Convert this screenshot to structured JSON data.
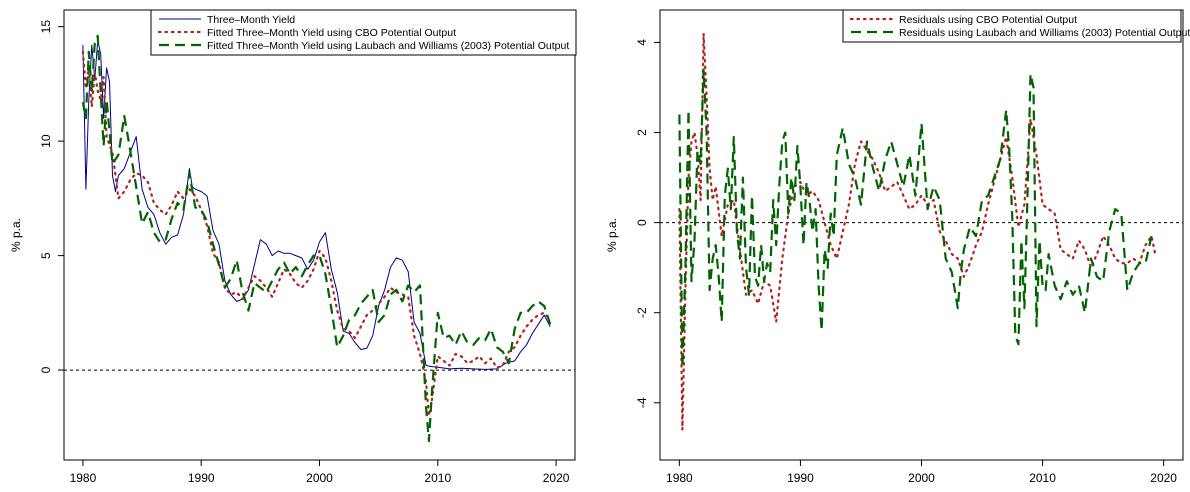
{
  "colors": {
    "yield": "#00008B",
    "cbo": "#B22222",
    "lw": "#006400",
    "axis": "#000000"
  },
  "chart_data": [
    {
      "type": "line",
      "ylabel": "% p.a.",
      "xlim": [
        1980,
        2020
      ],
      "ylim": [
        -3.2,
        15
      ],
      "x_ticks": [
        1980,
        1990,
        2000,
        2010,
        2020
      ],
      "y_ticks": [
        0,
        5,
        10,
        15
      ],
      "reference_line": 0,
      "legend": "top-right",
      "series": [
        {
          "name": "Three–Month Yield",
          "style": "solid",
          "x": [
            1980.0,
            1980.25,
            1980.5,
            1980.75,
            1981.0,
            1981.25,
            1981.5,
            1981.75,
            1982.0,
            1982.25,
            1982.5,
            1982.75,
            1983.0,
            1983.5,
            1984.0,
            1984.5,
            1985.0,
            1985.5,
            1986.0,
            1986.5,
            1987.0,
            1987.5,
            1988.0,
            1988.5,
            1989.0,
            1989.25,
            1989.5,
            1990.0,
            1990.5,
            1991.0,
            1991.5,
            1992.0,
            1992.5,
            1993.0,
            1993.5,
            1994.0,
            1994.5,
            1995.0,
            1995.5,
            1996.0,
            1996.5,
            1997.0,
            1997.5,
            1998.0,
            1998.5,
            1999.0,
            1999.5,
            2000.0,
            2000.5,
            2001.0,
            2001.5,
            2002.0,
            2002.5,
            2003.0,
            2003.5,
            2004.0,
            2004.5,
            2005.0,
            2005.5,
            2006.0,
            2006.5,
            2007.0,
            2007.5,
            2008.0,
            2008.5,
            2009.0,
            2009.5,
            2010.0,
            2011.0,
            2012.0,
            2013.0,
            2014.0,
            2015.0,
            2015.75,
            2016.5,
            2017.0,
            2017.5,
            2018.0,
            2018.5,
            2019.0,
            2019.5
          ],
          "values": [
            14.2,
            7.9,
            11.8,
            14.2,
            12.7,
            14.4,
            13.8,
            11.0,
            13.2,
            12.6,
            8.5,
            7.8,
            8.5,
            8.8,
            9.5,
            10.2,
            7.9,
            7.1,
            6.8,
            6.0,
            5.5,
            5.8,
            5.9,
            6.8,
            8.8,
            8.0,
            7.9,
            7.8,
            7.6,
            6.1,
            5.5,
            3.9,
            3.3,
            3.0,
            3.1,
            3.5,
            4.6,
            5.7,
            5.5,
            5.0,
            5.2,
            5.1,
            5.1,
            5.0,
            4.9,
            4.4,
            4.8,
            5.6,
            6.0,
            4.4,
            3.4,
            1.7,
            1.6,
            1.2,
            0.9,
            0.95,
            1.5,
            2.8,
            3.5,
            4.5,
            4.9,
            4.8,
            4.3,
            2.1,
            1.6,
            0.2,
            0.15,
            0.12,
            0.05,
            0.08,
            0.05,
            0.03,
            0.05,
            0.3,
            0.4,
            0.8,
            1.1,
            1.6,
            2.0,
            2.4,
            1.9
          ]
        },
        {
          "name": "Fitted Three–Month Yield using CBO Potential Output",
          "style": "dotted",
          "x": [
            1980.0,
            1980.25,
            1980.5,
            1980.75,
            1981.0,
            1981.25,
            1981.5,
            1981.75,
            1982.0,
            1982.5,
            1983.0,
            1983.5,
            1984.0,
            1984.5,
            1985.0,
            1985.5,
            1986.0,
            1986.5,
            1987.0,
            1987.5,
            1988.0,
            1988.5,
            1989.0,
            1989.5,
            1990.0,
            1990.5,
            1991.0,
            1991.5,
            1992.0,
            1992.5,
            1993.0,
            1993.5,
            1994.0,
            1994.5,
            1995.0,
            1995.5,
            1996.0,
            1996.5,
            1997.0,
            1997.5,
            1998.0,
            1998.5,
            1999.0,
            1999.5,
            2000.0,
            2000.5,
            2001.0,
            2001.5,
            2002.0,
            2002.5,
            2003.0,
            2003.5,
            2004.0,
            2004.5,
            2005.0,
            2005.5,
            2006.0,
            2006.5,
            2007.0,
            2007.5,
            2008.0,
            2008.5,
            2009.0,
            2009.25,
            2009.5,
            2010.0,
            2010.5,
            2011.0,
            2011.5,
            2012.0,
            2012.5,
            2013.0,
            2013.5,
            2014.0,
            2014.5,
            2015.0,
            2015.5,
            2016.0,
            2016.5,
            2017.0,
            2017.5,
            2018.0,
            2018.5,
            2019.0,
            2019.5
          ],
          "values": [
            13.9,
            12.3,
            13.2,
            11.5,
            13.0,
            12.2,
            11.8,
            12.8,
            10.2,
            9.5,
            7.5,
            7.8,
            8.3,
            8.6,
            8.5,
            8.2,
            7.3,
            7.0,
            6.8,
            7.2,
            7.8,
            7.5,
            7.9,
            7.6,
            7.0,
            6.3,
            5.1,
            4.7,
            3.6,
            3.3,
            3.4,
            3.1,
            3.6,
            4.1,
            3.9,
            3.6,
            3.2,
            3.8,
            4.4,
            4.2,
            3.8,
            3.6,
            3.9,
            4.4,
            5.2,
            4.9,
            3.9,
            2.6,
            1.8,
            1.7,
            1.4,
            1.9,
            2.4,
            2.6,
            2.9,
            3.2,
            3.6,
            3.4,
            3.3,
            3.2,
            1.5,
            0.7,
            -0.5,
            -2.0,
            -1.3,
            0.6,
            0.4,
            0.2,
            0.7,
            0.6,
            0.3,
            0.4,
            0.6,
            0.3,
            0.5,
            0.1,
            0.2,
            0.8,
            1.0,
            1.5,
            1.9,
            2.2,
            2.4,
            2.5,
            2.2
          ]
        },
        {
          "name": "Fitted Three–Month Yield using Laubach and Williams (2003) Potential Output",
          "style": "dashed",
          "x": [
            1980.0,
            1980.25,
            1980.5,
            1980.75,
            1981.0,
            1981.25,
            1981.5,
            1981.75,
            1982.0,
            1982.5,
            1983.0,
            1983.5,
            1984.0,
            1984.5,
            1985.0,
            1985.5,
            1986.0,
            1986.5,
            1987.0,
            1987.5,
            1988.0,
            1988.5,
            1989.0,
            1989.5,
            1990.0,
            1990.5,
            1991.0,
            1991.5,
            1992.0,
            1992.5,
            1993.0,
            1993.5,
            1994.0,
            1994.5,
            1995.0,
            1995.5,
            1996.0,
            1996.5,
            1997.0,
            1997.5,
            1998.0,
            1998.5,
            1999.0,
            1999.5,
            2000.0,
            2000.5,
            2001.0,
            2001.5,
            2002.0,
            2002.5,
            2003.0,
            2003.5,
            2004.0,
            2004.5,
            2005.0,
            2005.5,
            2006.0,
            2006.5,
            2007.0,
            2007.5,
            2008.0,
            2008.5,
            2009.0,
            2009.25,
            2009.5,
            2010.0,
            2010.5,
            2011.0,
            2011.5,
            2012.0,
            2012.5,
            2013.0,
            2013.5,
            2014.0,
            2014.5,
            2015.0,
            2015.5,
            2016.0,
            2016.5,
            2017.0,
            2017.5,
            2018.0,
            2018.5,
            2019.0,
            2019.5
          ],
          "values": [
            11.7,
            11.0,
            13.9,
            12.2,
            14.3,
            14.6,
            12.1,
            9.8,
            11.8,
            9.0,
            9.4,
            11.1,
            9.6,
            8.0,
            6.4,
            6.9,
            6.0,
            5.6,
            5.7,
            6.6,
            7.3,
            7.0,
            8.6,
            7.1,
            7.0,
            6.5,
            5.5,
            4.6,
            3.6,
            4.0,
            4.8,
            3.4,
            2.6,
            3.8,
            3.6,
            3.4,
            3.9,
            4.4,
            4.7,
            4.2,
            4.5,
            4.1,
            4.6,
            5.0,
            5.0,
            4.2,
            2.7,
            1.0,
            1.5,
            2.2,
            2.4,
            2.9,
            3.2,
            3.5,
            2.1,
            2.4,
            3.3,
            3.5,
            3.0,
            3.7,
            3.4,
            3.7,
            -1.6,
            -3.1,
            -1.0,
            2.5,
            1.4,
            1.5,
            1.1,
            1.7,
            1.2,
            1.1,
            1.4,
            1.3,
            1.8,
            1.0,
            0.8,
            0.3,
            1.8,
            2.5,
            2.5,
            2.8,
            3.0,
            2.8,
            2.0
          ]
        }
      ]
    },
    {
      "type": "line",
      "ylabel": "% p.a.",
      "xlim": [
        1980,
        2020
      ],
      "ylim": [
        -4.9,
        4.35
      ],
      "x_ticks": [
        1980,
        1990,
        2000,
        2010,
        2020
      ],
      "y_ticks": [
        -4,
        -2,
        0,
        2,
        4
      ],
      "reference_line": 0,
      "legend": "top-right",
      "series": [
        {
          "name": "Residuals using CBO Potential Output",
          "style": "dotted",
          "x": [
            1980.0,
            1980.25,
            1980.5,
            1980.75,
            1981.0,
            1981.25,
            1981.5,
            1981.75,
            1982.0,
            1982.25,
            1982.5,
            1982.75,
            1983.0,
            1983.5,
            1984.0,
            1984.5,
            1985.0,
            1985.5,
            1986.0,
            1986.5,
            1987.0,
            1987.5,
            1988.0,
            1988.5,
            1989.0,
            1989.5,
            1990.0,
            1990.5,
            1991.0,
            1991.5,
            1992.0,
            1992.5,
            1993.0,
            1993.5,
            1994.0,
            1994.5,
            1995.0,
            1995.5,
            1996.0,
            1996.5,
            1997.0,
            1997.5,
            1998.0,
            1998.5,
            1999.0,
            1999.5,
            2000.0,
            2000.5,
            2001.0,
            2001.5,
            2002.0,
            2002.5,
            2003.0,
            2003.5,
            2004.0,
            2004.5,
            2005.0,
            2005.5,
            2006.0,
            2006.5,
            2007.0,
            2007.5,
            2008.0,
            2008.5,
            2009.0,
            2009.5,
            2010.0,
            2010.5,
            2011.0,
            2011.5,
            2012.0,
            2012.5,
            2013.0,
            2013.5,
            2014.0,
            2014.5,
            2015.0,
            2015.5,
            2016.0,
            2016.5,
            2017.0,
            2017.5,
            2018.0,
            2018.5,
            2019.0,
            2019.3
          ],
          "values": [
            0.3,
            -4.6,
            -1.5,
            1.0,
            1.8,
            2.0,
            1.5,
            0.5,
            4.2,
            2.8,
            1.2,
            0.5,
            0.8,
            -0.3,
            0.4,
            0.5,
            -0.6,
            -1.6,
            -1.5,
            -1.8,
            -1.3,
            -1.4,
            -2.2,
            -0.8,
            0.2,
            0.8,
            0.9,
            0.6,
            0.7,
            0.5,
            0.0,
            -0.5,
            -0.8,
            -0.2,
            0.4,
            1.3,
            1.8,
            1.6,
            1.4,
            1.1,
            0.7,
            0.8,
            0.9,
            0.6,
            0.3,
            0.4,
            0.6,
            0.4,
            0.5,
            -0.2,
            -0.4,
            -0.7,
            -0.8,
            -1.2,
            -0.9,
            -0.5,
            -0.2,
            0.4,
            0.9,
            1.4,
            1.9,
            1.0,
            -0.1,
            0.4,
            2.3,
            1.5,
            0.4,
            0.3,
            0.2,
            -0.6,
            -0.7,
            -0.8,
            -0.4,
            -0.6,
            -1.0,
            -0.7,
            -0.3,
            -0.5,
            -0.8,
            -0.9,
            -0.9,
            -0.8,
            -0.9,
            -0.5,
            -0.3,
            -0.7
          ]
        },
        {
          "name": "Residuals using Laubach and Williams (2003) Potential Output",
          "style": "dashed",
          "x": [
            1980.0,
            1980.25,
            1980.5,
            1980.75,
            1981.0,
            1981.25,
            1981.5,
            1981.75,
            1982.0,
            1982.25,
            1982.5,
            1982.75,
            1983.0,
            1983.25,
            1983.5,
            1983.75,
            1984.0,
            1984.25,
            1984.5,
            1984.75,
            1985.0,
            1985.25,
            1985.5,
            1985.75,
            1986.0,
            1986.25,
            1986.5,
            1986.75,
            1987.0,
            1987.25,
            1987.5,
            1987.75,
            1988.0,
            1988.25,
            1988.5,
            1988.75,
            1989.0,
            1989.25,
            1989.5,
            1989.75,
            1990.0,
            1990.25,
            1990.5,
            1990.75,
            1991.0,
            1991.25,
            1991.5,
            1991.75,
            1992.0,
            1992.25,
            1992.5,
            1992.75,
            1993.0,
            1993.5,
            1994.0,
            1994.5,
            1995.0,
            1995.5,
            1996.0,
            1996.5,
            1997.0,
            1997.5,
            1998.0,
            1998.5,
            1999.0,
            1999.5,
            2000.0,
            2000.5,
            2001.0,
            2001.5,
            2002.0,
            2002.5,
            2003.0,
            2003.25,
            2003.5,
            2004.0,
            2004.5,
            2005.0,
            2005.5,
            2006.0,
            2006.5,
            2007.0,
            2007.25,
            2007.5,
            2007.75,
            2008.0,
            2008.25,
            2008.5,
            2008.75,
            2009.0,
            2009.25,
            2009.5,
            2009.75,
            2010.0,
            2010.25,
            2010.5,
            2011.0,
            2011.5,
            2012.0,
            2012.5,
            2013.0,
            2013.5,
            2014.0,
            2014.5,
            2015.0,
            2015.5,
            2016.0,
            2016.5,
            2017.0,
            2017.5,
            2018.0,
            2018.5,
            2019.0,
            2019.3
          ],
          "values": [
            2.4,
            -3.2,
            -1.0,
            2.5,
            -1.3,
            -0.4,
            1.6,
            1.3,
            3.4,
            2.0,
            -1.5,
            -0.8,
            -0.5,
            -1.2,
            -2.2,
            0.6,
            1.2,
            0.3,
            1.9,
            -0.2,
            -0.8,
            1.0,
            -1.0,
            -1.6,
            0.6,
            -1.2,
            -1.4,
            -0.5,
            -1.3,
            -0.9,
            -1.1,
            0.5,
            -0.5,
            0.8,
            1.8,
            2.0,
            0.2,
            1.0,
            0.5,
            1.7,
            0.8,
            -0.5,
            0.9,
            0.5,
            -0.2,
            0.3,
            -1.4,
            -2.4,
            -0.6,
            -1.0,
            0.2,
            -0.3,
            1.5,
            2.1,
            1.3,
            1.0,
            0.4,
            1.8,
            1.2,
            0.7,
            1.4,
            1.8,
            1.3,
            0.8,
            1.5,
            0.6,
            2.2,
            0.3,
            0.8,
            0.5,
            -0.8,
            -1.1,
            -1.9,
            -1.1,
            -0.6,
            -0.1,
            -0.3,
            0.5,
            0.6,
            1.0,
            1.4,
            2.5,
            1.6,
            0.1,
            -2.5,
            -2.7,
            -0.4,
            -1.9,
            0.5,
            3.3,
            3.0,
            -2.3,
            -0.4,
            -1.4,
            -1.5,
            -0.7,
            -1.4,
            -1.7,
            -1.3,
            -1.6,
            -1.4,
            -2.0,
            -0.8,
            -1.2,
            -1.3,
            -0.2,
            0.3,
            0.2,
            -1.5,
            -1.1,
            -0.9,
            -0.9,
            -0.3,
            -0.4
          ]
        }
      ]
    }
  ]
}
